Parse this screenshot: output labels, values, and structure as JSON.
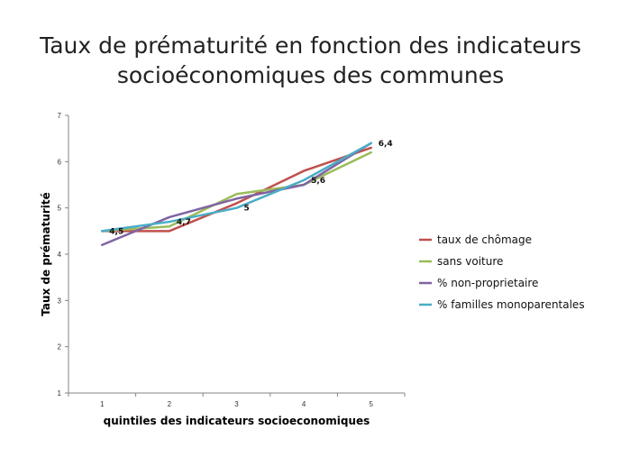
{
  "title_line1": "Taux de prématurité en fonction des indicateurs",
  "title_line2": "socioéconomiques des communes",
  "chart_data": {
    "type": "line",
    "x": [
      1,
      2,
      3,
      4,
      5
    ],
    "xlabel": "quintiles des indicateurs socioeconomiques",
    "ylabel": "Taux de prématurité",
    "ylim": [
      1,
      7
    ],
    "yticks": [
      1,
      2,
      3,
      4,
      5,
      6,
      7
    ],
    "grid": false,
    "legend": "right",
    "series": [
      {
        "name": "taux de chômage",
        "values": [
          4.5,
          4.5,
          5.1,
          5.8,
          6.3
        ],
        "color": "#C0504D"
      },
      {
        "name": "sans voiture",
        "values": [
          4.5,
          4.6,
          5.3,
          5.5,
          6.2
        ],
        "color": "#9BBB59"
      },
      {
        "name": "% non-proprietaire",
        "values": [
          4.2,
          4.8,
          5.2,
          5.5,
          6.4
        ],
        "color": "#8064A2"
      },
      {
        "name": "% familles monoparentales",
        "values": [
          4.5,
          4.7,
          5.0,
          5.6,
          6.4
        ],
        "color": "#4BACC6"
      }
    ],
    "data_labels": [
      {
        "x": 1,
        "y": 4.5,
        "text": "4,5"
      },
      {
        "x": 2,
        "y": 4.7,
        "text": "4,7"
      },
      {
        "x": 3,
        "y": 5.0,
        "text": "5"
      },
      {
        "x": 4,
        "y": 5.6,
        "text": "5,6"
      },
      {
        "x": 5,
        "y": 6.4,
        "text": "6,4"
      }
    ]
  }
}
